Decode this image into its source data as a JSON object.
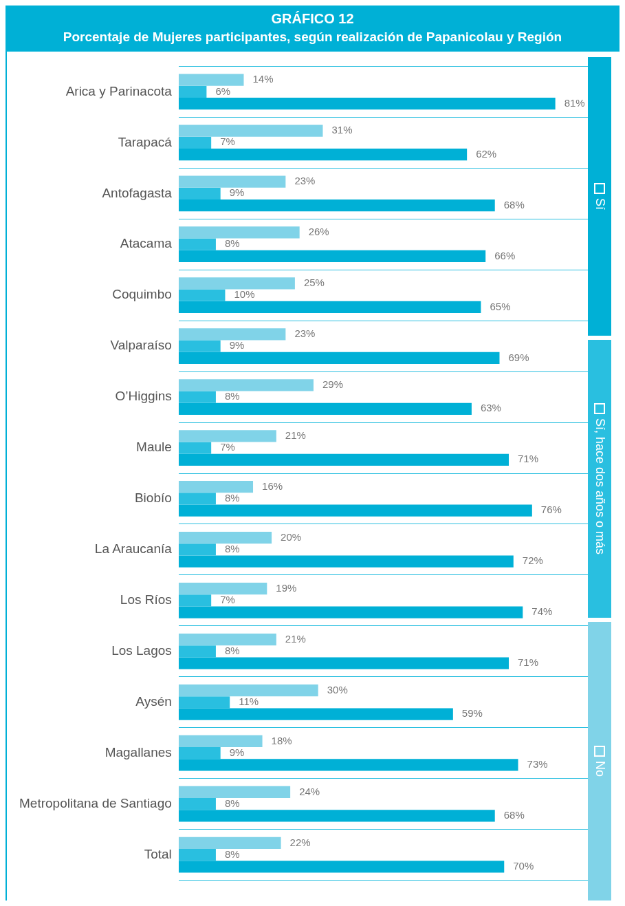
{
  "chart_data": {
    "type": "bar",
    "orientation": "horizontal",
    "title": "GRÁFICO 12",
    "subtitle": "Porcentaje de Mujeres participantes, según realización de Papanicolau y Región",
    "categories": [
      "Arica y Parinacota",
      "Tarapacá",
      "Antofagasta",
      "Atacama",
      "Coquimbo",
      "Valparaíso",
      "O’Higgins",
      "Maule",
      "Biobío",
      "La Araucanía",
      "Los Ríos",
      "Los Lagos",
      "Aysén",
      "Magallanes",
      "Metropolitana de Santiago",
      "Total"
    ],
    "series": [
      {
        "name": "No",
        "color": "#80d3e8",
        "values": [
          14,
          31,
          23,
          26,
          25,
          23,
          29,
          21,
          16,
          20,
          19,
          21,
          30,
          18,
          24,
          22
        ],
        "value_labels": [
          "14%",
          "31%",
          "23%",
          "26%",
          "25%",
          "23%",
          "29%",
          "21%",
          "16%",
          "20%",
          "19%",
          "21%",
          "30%",
          "18%",
          "24%",
          "22%"
        ]
      },
      {
        "name": "Sí, hace dos años o más",
        "color": "#29bfe0",
        "values": [
          6,
          7,
          9,
          8,
          10,
          9,
          8,
          7,
          8,
          8,
          7,
          8,
          11,
          9,
          8,
          8
        ],
        "value_labels": [
          "6%",
          "7%",
          "9%",
          "8%",
          "10%",
          "9%",
          "8%",
          "7%",
          "8%",
          "8%",
          "7%",
          "8%",
          "11%",
          "9%",
          "8%",
          "8%"
        ]
      },
      {
        "name": "Sí",
        "color": "#00b0d6",
        "values": [
          81,
          62,
          68,
          66,
          65,
          69,
          63,
          71,
          76,
          72,
          74,
          71,
          59,
          73,
          68,
          70
        ],
        "value_labels": [
          "81%",
          "62%",
          "68%",
          "66%",
          "65%",
          "69%",
          "63%",
          "71%",
          "76%",
          "72%",
          "74%",
          "71%",
          "59%",
          "73%",
          "68%",
          "70%"
        ]
      }
    ],
    "xlim": [
      0,
      88
    ],
    "tick_labels": "y",
    "grid": "y",
    "legend": "right"
  }
}
